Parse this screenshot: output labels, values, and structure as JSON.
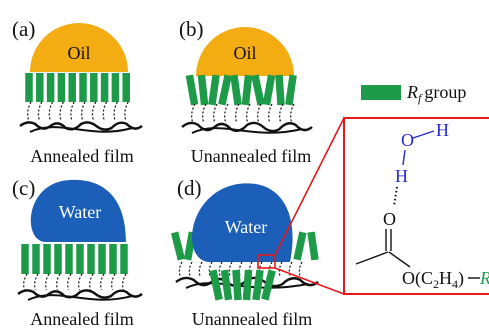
{
  "panels": {
    "a": {
      "tag": "(a)",
      "droplet": "Oil",
      "caption": "Annealed film"
    },
    "b": {
      "tag": "(b)",
      "droplet": "Oil",
      "caption": "Unannealed film"
    },
    "c": {
      "tag": "(c)",
      "droplet": "Water",
      "caption": "Annealed film"
    },
    "d": {
      "tag": "(d)",
      "droplet": "Water",
      "caption": "Unannealed film"
    }
  },
  "legend": {
    "label_main": "R",
    "label_sub": "f",
    "label_tail": "group"
  },
  "inset": {
    "atom_o_top": "O",
    "atom_h_top": "H",
    "atom_h_mid": "H",
    "atom_o_carbonyl": "O",
    "ester_text": "O(C",
    "ester_sub1": "2",
    "ester_mid": "H",
    "ester_sub2": "4",
    "ester_tail": ")",
    "rf_label": "R"
  },
  "colors": {
    "oil": "#f3ad13",
    "water": "#1c5fb8",
    "rf_green": "#1d9b48",
    "zoom_red": "#e31a1c",
    "atom_blue": "#2828d8",
    "rf_text_green": "#1f9e57",
    "chain_black": "#111111"
  }
}
